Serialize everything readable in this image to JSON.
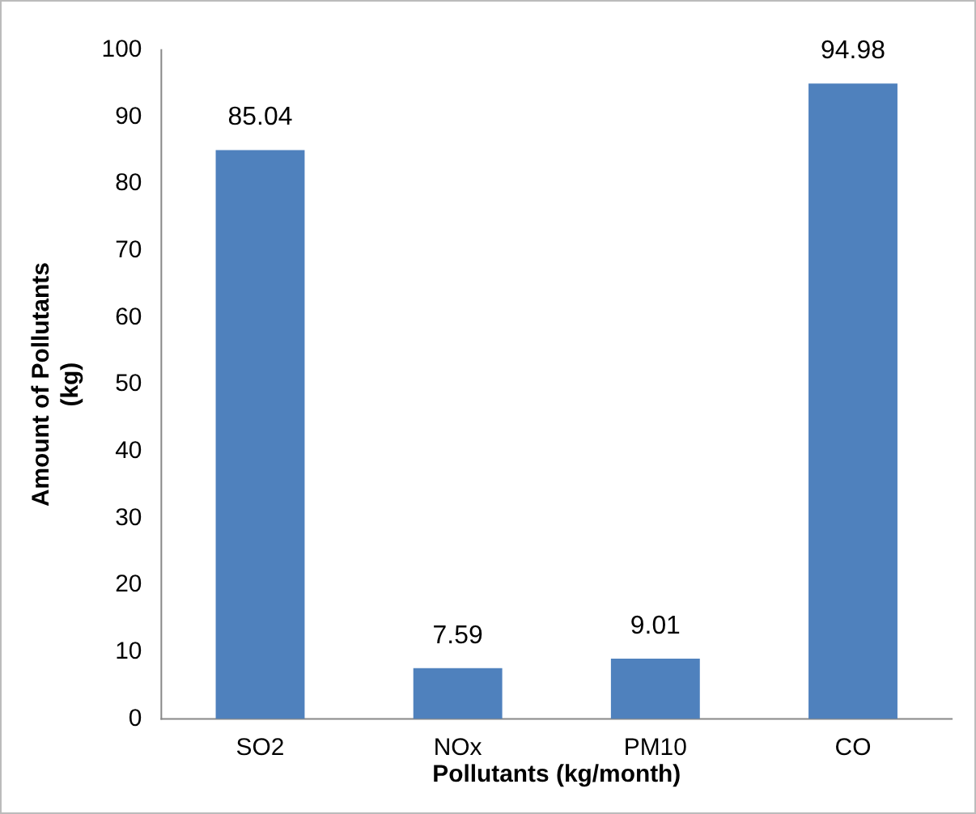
{
  "chart_data": {
    "type": "bar",
    "categories": [
      "SO2",
      "NOx",
      "PM10",
      "CO"
    ],
    "values": [
      85.04,
      7.59,
      9.01,
      94.98
    ],
    "color": "#4f81bd",
    "xlabel": "Pollutants (kg/month)",
    "ylabel": "Amount of Pollutants\n(kg)",
    "ylim": [
      0,
      100
    ],
    "yticks": [
      0,
      10,
      20,
      30,
      40,
      50,
      60,
      70,
      80,
      90,
      100
    ],
    "grid": false,
    "legend": false,
    "data_labels": true
  }
}
